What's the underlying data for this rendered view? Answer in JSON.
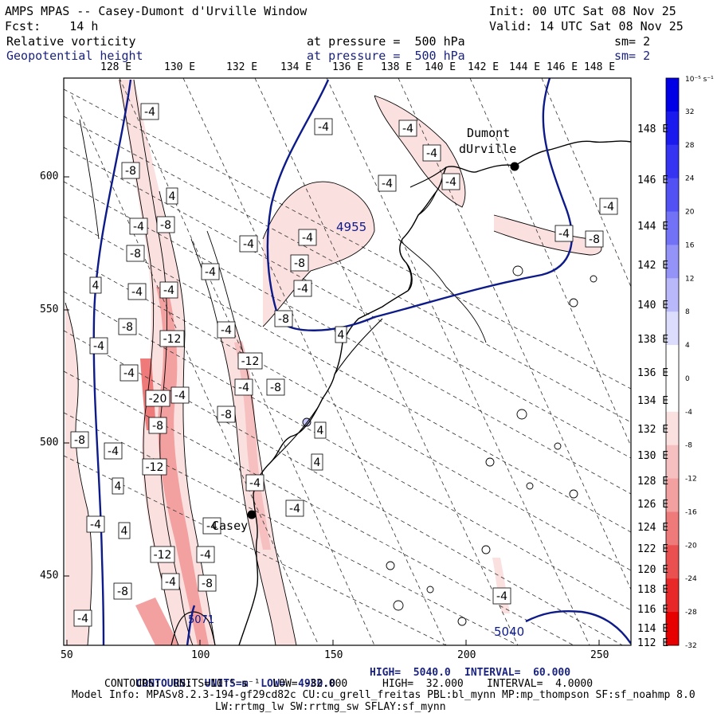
{
  "header": {
    "title": "AMPS MPAS -- Casey-Dumont d'Urville Window",
    "init": "Init: 00 UTC Sat 08 Nov 25",
    "fcst": "Fcst:    14 h",
    "valid": "Valid: 14 UTC Sat 08 Nov 25",
    "field1_name": "Relative vorticity",
    "field1_level": "at pressure =  500 hPa",
    "field1_sm": "sm= 2",
    "field2_name": "Geopotential height",
    "field2_level": "at pressure =  500 hPa",
    "field2_sm": "sm= 2"
  },
  "colors": {
    "accent_blue": "#1a237e",
    "height_contour": "#0d1a8a",
    "coastline": "#000000"
  },
  "lon_labels_top": [
    "128 E",
    "130 E",
    "132 E",
    "134 E",
    "136 E",
    "138 E",
    "140 E",
    "142 E",
    "144 E",
    "146 E",
    "148 E"
  ],
  "lon_labels_right": [
    "148 E",
    "146 E",
    "144 E",
    "142 E",
    "140 E",
    "138 E",
    "136 E",
    "134 E",
    "132 E",
    "130 E",
    "128 E",
    "126 E",
    "124 E",
    "122 E",
    "120 E",
    "118 E",
    "116 E",
    "114 E",
    "112 E"
  ],
  "x_ticks": [
    "50",
    "100",
    "150",
    "200",
    "250"
  ],
  "y_ticks": [
    "600",
    "550",
    "500",
    "450"
  ],
  "colorbar": {
    "unit_label": "10⁻⁵ s⁻¹",
    "labels": [
      "32",
      "28",
      "24",
      "20",
      "16",
      "12",
      "8",
      "4",
      "0",
      "-4",
      "-8",
      "-12",
      "-16",
      "-20",
      "-24",
      "-28",
      "-32"
    ],
    "colors": [
      "#0000e6",
      "#1a1aee",
      "#3434f2",
      "#5252f4",
      "#7272f6",
      "#9494f8",
      "#b8b8fb",
      "#dcdcfd",
      "#ffffff",
      "#ffffff",
      "#fbe0e0",
      "#f7c0c0",
      "#f3a0a0",
      "#ef7a7a",
      "#eb5050",
      "#e82828",
      "#e60000"
    ]
  },
  "stations": [
    {
      "name": "Dumont\ndUrville",
      "line1": "Dumont",
      "line2": "dUrville"
    },
    {
      "name": "Casey",
      "line1": "Casey"
    }
  ],
  "height_labels": [
    "4955",
    "5040",
    "5071"
  ],
  "vort_labels": [
    "-4",
    "-8",
    "-12",
    "-20",
    "4",
    "-4",
    "-8",
    "-4",
    "-4",
    "-8",
    "-4",
    "-4",
    "-8",
    "-12",
    "-4",
    "-8",
    "-4",
    "-4",
    "-12",
    "-4",
    "-8",
    "-4",
    "-8",
    "-4",
    "-4",
    "4",
    "4",
    "4",
    "4",
    "-4",
    "-8",
    "-4",
    "-4",
    "-12",
    "-8",
    "-4",
    "-8",
    "-4",
    "-8",
    "-4",
    "4",
    "4",
    "-4",
    "-8",
    "-4",
    "-4",
    "-4",
    "-4",
    "-4",
    "-4",
    "-4",
    "-4",
    "-8",
    "-4"
  ],
  "footer": {
    "line1_a": "CONTOURS:  UNITS=m  LOW=  4980.0",
    "line1_b": "HIGH=  5040.0",
    "line1_c": "INTERVAL=  60.000",
    "line2_a": "CONTOURS:  UNITS=10⁻⁵ s⁻¹  LOW= -32.000",
    "line2_b": "HIGH=  32.000",
    "line2_c": "INTERVAL=  4.0000",
    "line3": "Model Info: MPASv8.2.3-194-gf29cd82c CU:cu_grell_freitas PBL:bl_mynn MP:mp_thompson SF:sf_noahmp 8.0",
    "line4": "LW:rrtmg_lw SW:rrtmg_sw SFLAY:sf_mynn"
  }
}
